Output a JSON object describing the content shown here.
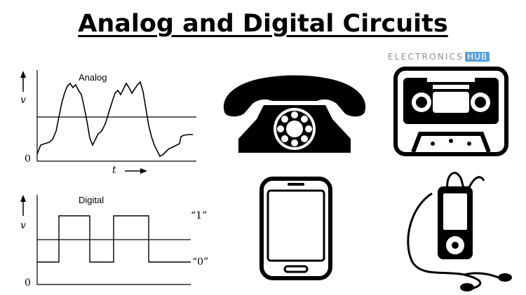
{
  "title": "Analog and Digital Circuits",
  "watermark": {
    "left": "ELECTRONICS",
    "right": "HUB"
  },
  "analog_graph": {
    "label": "Analog",
    "y_axis": "v",
    "x_axis": "t",
    "origin": "0"
  },
  "digital_graph": {
    "label": "Digital",
    "y_axis": "v",
    "origin": "0",
    "high_label": "“1”",
    "low_label": "“0”"
  },
  "icons": [
    "telephone-icon",
    "cassette-tape-icon",
    "smartphone-icon",
    "mp3-player-icon"
  ],
  "colors": {
    "text": "#000000",
    "watermark_gray": "#8f8f8f",
    "watermark_blue": "#5aa0d8"
  }
}
